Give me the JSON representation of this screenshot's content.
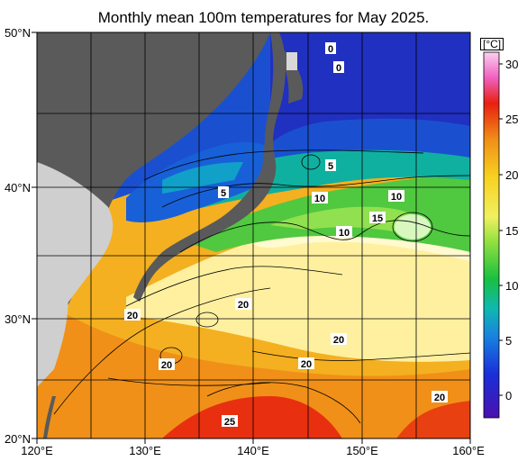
{
  "title": "Monthly mean 100m temperatures for May 2025.",
  "map": {
    "latitude_labels": [
      "50°N",
      "40°N",
      "30°N",
      "20°N"
    ],
    "longitude_labels": [
      "120°E",
      "130°E",
      "140°E",
      "150°E",
      "160°E"
    ],
    "contour_labels": [
      {
        "text": "0"
      },
      {
        "text": "0"
      },
      {
        "text": "5"
      },
      {
        "text": "5"
      },
      {
        "text": "10"
      },
      {
        "text": "10"
      },
      {
        "text": "10"
      },
      {
        "text": "15"
      },
      {
        "text": "20"
      },
      {
        "text": "20"
      },
      {
        "text": "20"
      },
      {
        "text": "20"
      },
      {
        "text": "20"
      },
      {
        "text": "20"
      },
      {
        "text": "25"
      }
    ]
  },
  "colorbar": {
    "unit": "[°C]",
    "ticks": [
      "30",
      "25",
      "20",
      "15",
      "10",
      "5",
      "0"
    ],
    "colors": {
      "cold": "#3a1fb0",
      "blue": "#1a4fd8",
      "cyan": "#10a8c8",
      "green": "#20c030",
      "lightgreen": "#a8e060",
      "yellow": "#f8e020",
      "orange": "#f09018",
      "red": "#e82010",
      "pink": "#f060c0"
    }
  },
  "colors": {
    "land": "#5a5a5a",
    "land_light": "#cccccc",
    "grid": "#000000"
  }
}
